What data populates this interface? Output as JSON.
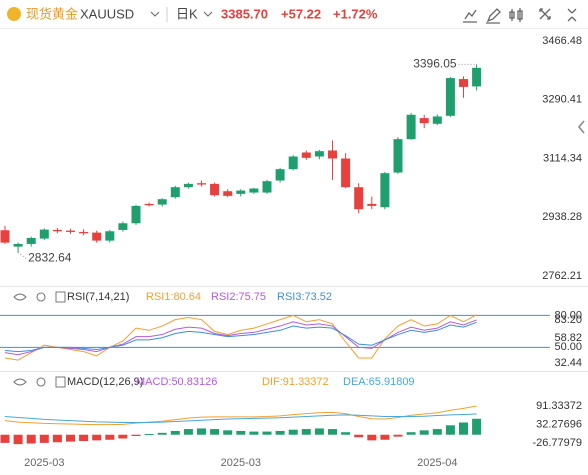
{
  "header": {
    "name": "现货黄金",
    "symbol": "XAUUSD",
    "period": "日K",
    "price": "3385.70",
    "change": "+57.22",
    "change_pct": "+1.72%"
  },
  "chart_data": [
    {
      "type": "candlestick",
      "up_color": "#1f9e6e",
      "down_color": "#e8403d",
      "grid": false,
      "categories": [
        null,
        null,
        null,
        "2025-03",
        null,
        null,
        null,
        null,
        null,
        null,
        null,
        null,
        null,
        null,
        null,
        null,
        null,
        null,
        "2025-03",
        null,
        null,
        null,
        null,
        null,
        null,
        null,
        null,
        null,
        null,
        null,
        null,
        null,
        null,
        "2025-04",
        null,
        null,
        null
      ],
      "open": [
        2899,
        2850,
        2858,
        2874,
        2900,
        2898,
        2894,
        2892,
        2868,
        2900,
        2920,
        2978,
        2976,
        2998,
        3028,
        3040,
        3038,
        3016,
        3008,
        3012,
        3012,
        3048,
        3082,
        3132,
        3120,
        3138,
        3114,
        3028,
        2978,
        2968,
        3072,
        3172,
        3235,
        3218,
        3242,
        3352,
        3330
      ],
      "high": [
        2912,
        2862,
        2880,
        2905,
        2906,
        2904,
        2902,
        2898,
        2900,
        2925,
        2975,
        2982,
        2995,
        3032,
        3042,
        3048,
        3042,
        3022,
        3022,
        3026,
        3050,
        3086,
        3124,
        3138,
        3140,
        3168,
        3130,
        3040,
        3000,
        3074,
        3178,
        3250,
        3245,
        3246,
        3358,
        3360,
        3396.05
      ],
      "low": [
        2858,
        2832.64,
        2850,
        2870,
        2890,
        2888,
        2884,
        2862,
        2862,
        2895,
        2915,
        2970,
        2970,
        2994,
        3024,
        3030,
        3000,
        2998,
        3000,
        3008,
        3008,
        3042,
        3078,
        3110,
        3112,
        3050,
        3025,
        2950,
        2962,
        2962,
        3068,
        3170,
        3205,
        3214,
        3238,
        3296,
        3318
      ],
      "close": [
        2862,
        2858,
        2876,
        2901,
        2896,
        2894,
        2890,
        2868,
        2896,
        2920,
        2972,
        2974,
        2992,
        3028,
        3038,
        3036,
        3004,
        3002,
        3018,
        3024,
        3046,
        3082,
        3120,
        3116,
        3136,
        3114,
        3028,
        2962,
        2972,
        3070,
        3172,
        3245,
        3220,
        3240,
        3355,
        3328.48,
        3385.7
      ],
      "ylim": [
        2735,
        3502
      ],
      "yticks": [
        3466.48,
        3290.41,
        3114.34,
        2938.28,
        2762.21
      ],
      "annotations": [
        {
          "label": "3396.05",
          "value": 3396.05
        },
        {
          "label": "2832.64",
          "value": 2832.64
        }
      ]
    },
    {
      "type": "line",
      "title": "RSI(7,14,21)",
      "series": [
        {
          "name": "RSI1:80.64",
          "color": "#f0a030",
          "values": [
            40,
            38,
            45,
            52,
            50,
            48,
            46,
            42,
            50,
            56,
            68,
            66,
            70,
            76,
            78,
            76,
            65,
            62,
            66,
            68,
            72,
            76,
            80,
            74,
            76,
            72,
            55,
            40,
            40,
            58,
            70,
            76,
            70,
            72,
            80,
            74,
            80.64
          ]
        },
        {
          "name": "RSI2:75.75",
          "color": "#b05ce0",
          "values": [
            45,
            43,
            46,
            50,
            50,
            49,
            48,
            46,
            50,
            53,
            60,
            60,
            62,
            67,
            69,
            68,
            63,
            61,
            63,
            64,
            67,
            70,
            74,
            71,
            72,
            70,
            60,
            50,
            49,
            57,
            64,
            69,
            66,
            68,
            74,
            71,
            75.75
          ]
        },
        {
          "name": "RSI3:73.52",
          "color": "#3d8fd8",
          "values": [
            47,
            46,
            47,
            50,
            50,
            50,
            49,
            48,
            50,
            52,
            57,
            57,
            59,
            63,
            65,
            64,
            62,
            60,
            61,
            62,
            64,
            66,
            70,
            68,
            69,
            68,
            61,
            53,
            52,
            57,
            62,
            66,
            64,
            66,
            71,
            69,
            73.52
          ]
        }
      ],
      "ylim": [
        32.44,
        83.2
      ],
      "yticks": [
        {
          "value": 83.2,
          "label": "83.20"
        },
        58.82,
        32.44
      ],
      "reference_lines": [
        {
          "value": 80,
          "label": "80.00"
        },
        {
          "value": 50,
          "label": "50.00"
        }
      ],
      "reference_color": "#3d8fd8"
    },
    {
      "type": "macd",
      "title": "MACD(12,26,9)",
      "series": [
        {
          "name": "MACD:50.83126",
          "color": "#b05ce0",
          "up_color": "#1f9e6e",
          "down_color": "#e8403d",
          "values": [
            -26,
            -30,
            -28,
            -26,
            -24,
            -22,
            -20,
            -18,
            -16,
            -12,
            -4,
            2,
            6,
            12,
            18,
            20,
            18,
            14,
            12,
            10,
            10,
            12,
            16,
            18,
            20,
            18,
            8,
            -8,
            -18,
            -16,
            -6,
            8,
            14,
            18,
            30,
            39,
            50.83126
          ]
        },
        {
          "name": "DIF:91.33372",
          "color": "#f0a030",
          "values": [
            45,
            40,
            38,
            36,
            35,
            34,
            33,
            32,
            32,
            33,
            37,
            40,
            43,
            48,
            53,
            56,
            57,
            57,
            57,
            57,
            58,
            60,
            64,
            67,
            70,
            71,
            67,
            58,
            51,
            50,
            55,
            62,
            66,
            70,
            78,
            84,
            91.33372
          ]
        },
        {
          "name": "DEA:65.91809",
          "color": "#48a8d8",
          "values": [
            58,
            55,
            52,
            49,
            47,
            45,
            43,
            41,
            40,
            39,
            39,
            39,
            40,
            42,
            44,
            46,
            48,
            50,
            51,
            52,
            53,
            54,
            56,
            58,
            60,
            62,
            63,
            62,
            60,
            58,
            58,
            58,
            59,
            61,
            63,
            64.5,
            65.91809
          ]
        }
      ],
      "ylim": [
        -55,
        136
      ],
      "yticks": [
        91.33372,
        32.27696,
        -26.77979
      ]
    }
  ]
}
